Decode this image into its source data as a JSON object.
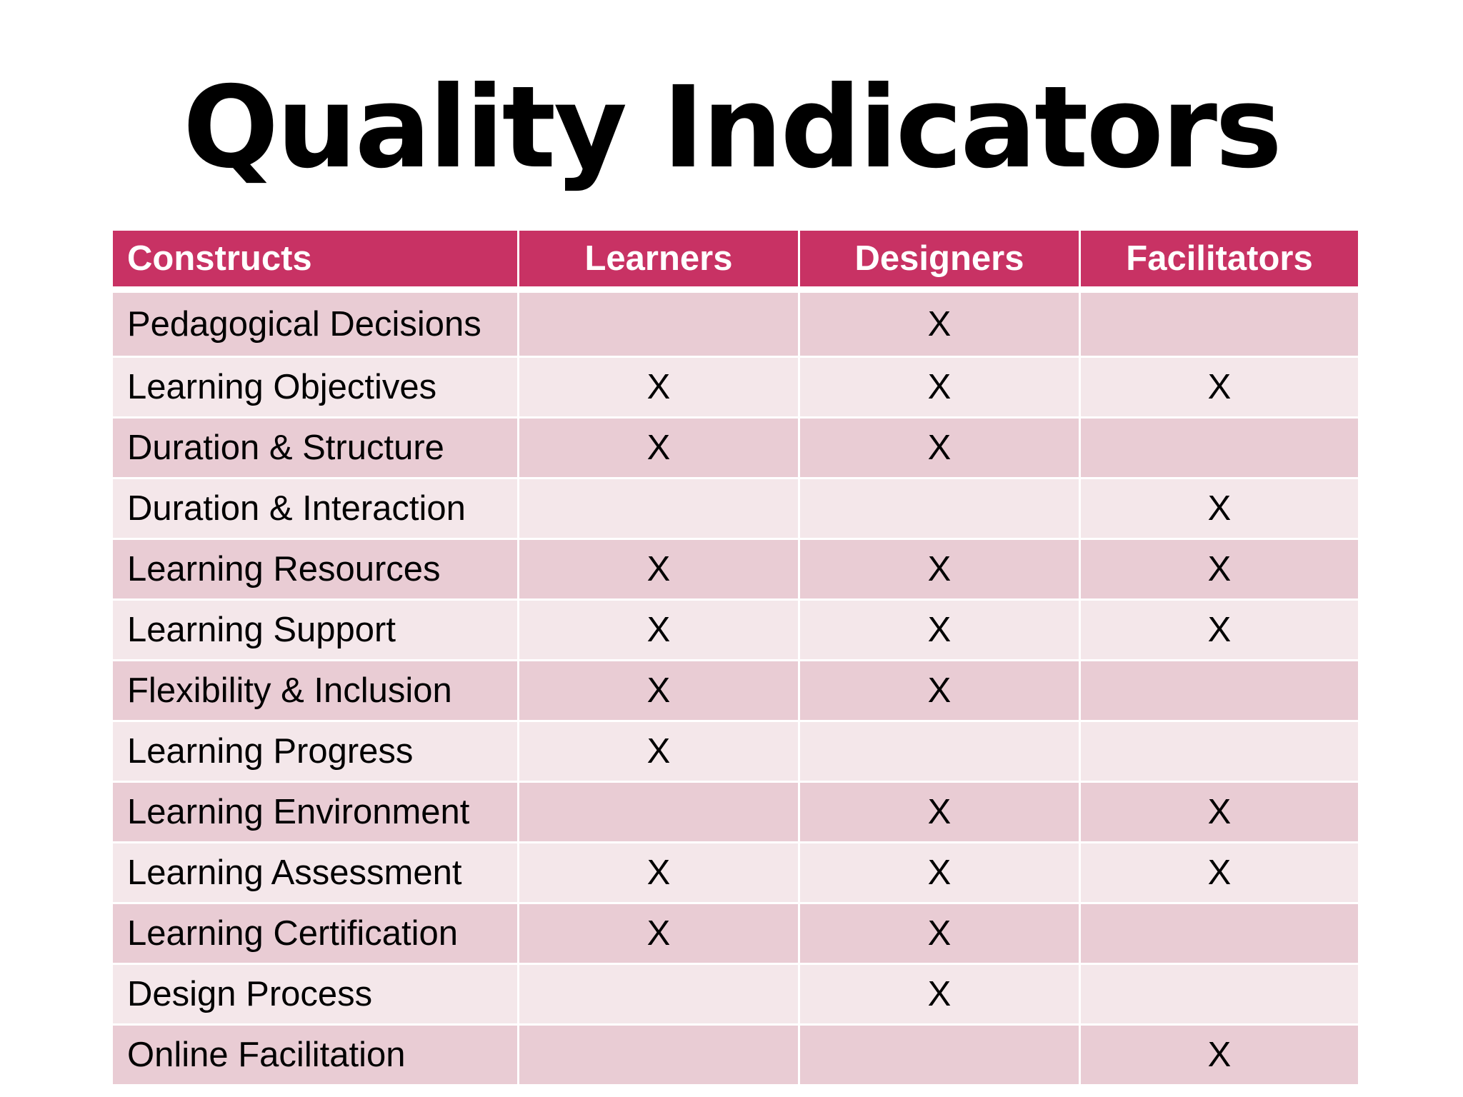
{
  "title": "Quality Indicators",
  "table": {
    "headers": [
      "Constructs",
      "Learners",
      "Designers",
      "Facilitators"
    ],
    "rows": [
      {
        "construct": "Pedagogical Decisions",
        "learners": "",
        "designers": "X",
        "facilitators": ""
      },
      {
        "construct": "Learning Objectives",
        "learners": "X",
        "designers": "X",
        "facilitators": "X"
      },
      {
        "construct": "Duration & Structure",
        "learners": "X",
        "designers": "X",
        "facilitators": ""
      },
      {
        "construct": "Duration & Interaction",
        "learners": "",
        "designers": "",
        "facilitators": "X"
      },
      {
        "construct": "Learning Resources",
        "learners": "X",
        "designers": "X",
        "facilitators": "X"
      },
      {
        "construct": "Learning Support",
        "learners": "X",
        "designers": "X",
        "facilitators": "X"
      },
      {
        "construct": "Flexibility & Inclusion",
        "learners": "X",
        "designers": "X",
        "facilitators": ""
      },
      {
        "construct": "Learning Progress",
        "learners": "X",
        "designers": "",
        "facilitators": ""
      },
      {
        "construct": "Learning Environment",
        "learners": "",
        "designers": "X",
        "facilitators": "X"
      },
      {
        "construct": "Learning Assessment",
        "learners": "X",
        "designers": "X",
        "facilitators": "X"
      },
      {
        "construct": "Learning Certification",
        "learners": "X",
        "designers": "X",
        "facilitators": ""
      },
      {
        "construct": "Design Process",
        "learners": "",
        "designers": "X",
        "facilitators": ""
      },
      {
        "construct": "Online Facilitation",
        "learners": "",
        "designers": "",
        "facilitators": "X"
      }
    ]
  },
  "colors": {
    "header_bg": "#c83264",
    "row_dark": "#e9ccd4",
    "row_light": "#f4e7ea",
    "header_text": "#ffffff",
    "body_text": "#000000"
  }
}
